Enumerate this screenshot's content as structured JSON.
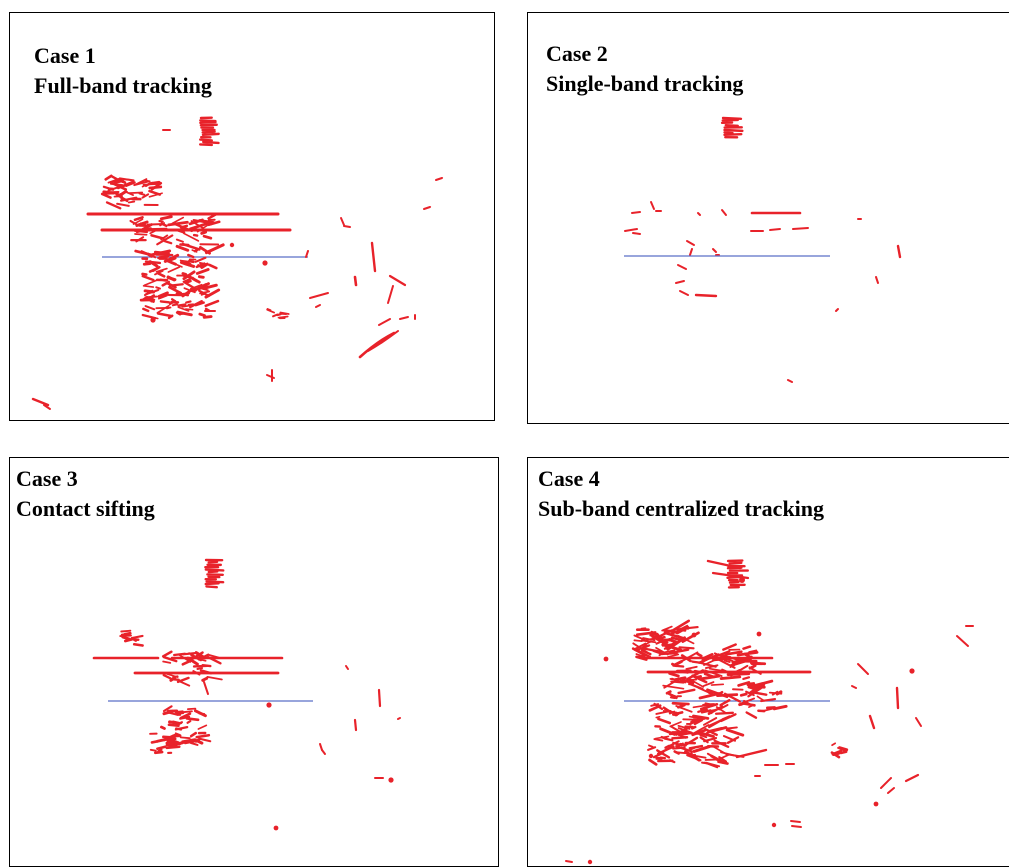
{
  "colors": {
    "track": "#e8222a",
    "reference_line": "#5b6fc7",
    "frame": "#000000"
  },
  "panels": [
    {
      "case_label": "Case 1",
      "method": "Full-band tracking"
    },
    {
      "case_label": "Case 2",
      "method": "Single-band tracking"
    },
    {
      "case_label": "Case 3",
      "method": "Contact sifting"
    },
    {
      "case_label": "Case 4",
      "method": "Sub-band centralized tracking"
    }
  ]
}
